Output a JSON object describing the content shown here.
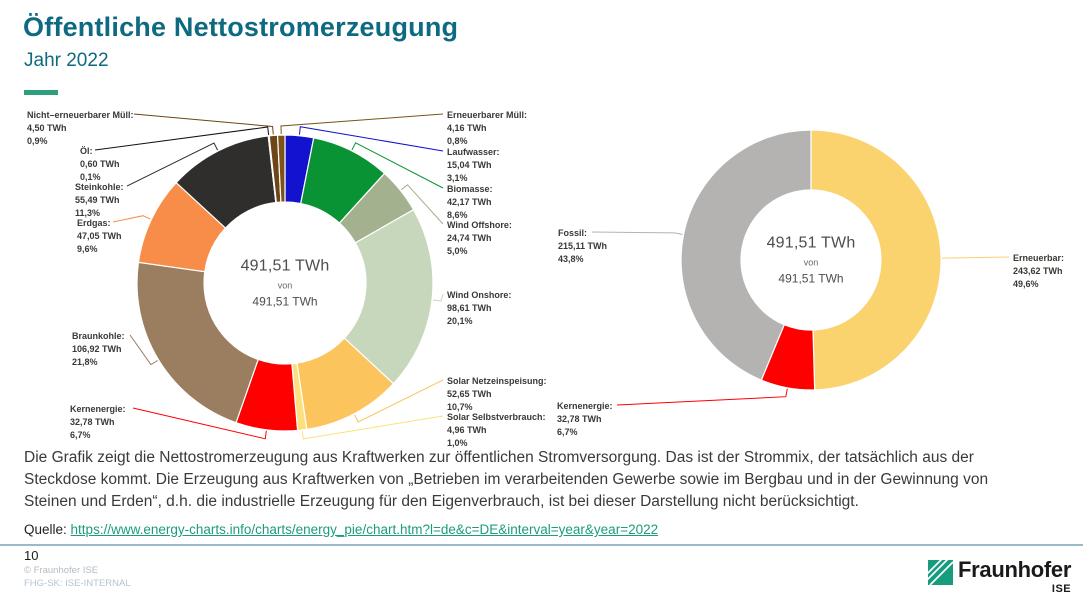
{
  "header": {
    "title": "Öffentliche Nettostromerzeugung",
    "subtitle": "Jahr 2022"
  },
  "chart_data": [
    {
      "type": "pie",
      "name": "Öffentliche Nettostromerzeugung nach Energieträgern 2022",
      "unit": "TWh",
      "center": {
        "main": "491,51 TWh",
        "von": "von",
        "total": "491,51 TWh"
      },
      "segments": [
        {
          "label": "Laufwasser:",
          "value": "15,04 TWh",
          "pct_label": "3,1%",
          "twh": 15.04,
          "pct": 3.1,
          "color": "#1212cf"
        },
        {
          "label": "Biomasse:",
          "value": "42,17 TWh",
          "pct_label": "8,6%",
          "twh": 42.17,
          "pct": 8.6,
          "color": "#0a9334"
        },
        {
          "label": "Wind Offshore:",
          "value": "24,74 TWh",
          "pct_label": "5,0%",
          "twh": 24.74,
          "pct": 5.0,
          "color": "#a3b18e"
        },
        {
          "label": "Wind Onshore:",
          "value": "98,61 TWh",
          "pct_label": "20,1%",
          "twh": 98.61,
          "pct": 20.1,
          "color": "#c7d7bb"
        },
        {
          "label": "Solar Netzeinspeisung:",
          "value": "52,65 TWh",
          "pct_label": "10,7%",
          "twh": 52.65,
          "pct": 10.7,
          "color": "#fbc45c"
        },
        {
          "label": "Solar Selbstverbrauch:",
          "value": "4,96 TWh",
          "pct_label": "1,0%",
          "twh": 4.96,
          "pct": 1.0,
          "color": "#fbe17d"
        },
        {
          "label": "Kernenergie:",
          "value": "32,78 TWh",
          "pct_label": "6,7%",
          "twh": 32.78,
          "pct": 6.7,
          "color": "#fe0000"
        },
        {
          "label": "Braunkohle:",
          "value": "106,92 TWh",
          "pct_label": "21,8%",
          "twh": 106.92,
          "pct": 21.8,
          "color": "#9b7d5f"
        },
        {
          "label": "Erdgas:",
          "value": "47,05 TWh",
          "pct_label": "9,6%",
          "twh": 47.05,
          "pct": 9.6,
          "color": "#f78d48"
        },
        {
          "label": "Steinkohle:",
          "value": "55,49 TWh",
          "pct_label": "11,3%",
          "twh": 55.49,
          "pct": 11.3,
          "color": "#302e2c"
        },
        {
          "label": "Öl:",
          "value": "0,60 TWh",
          "pct_label": "0,1%",
          "twh": 0.6,
          "pct": 0.1,
          "color": "#111111"
        },
        {
          "label": "Nicht–erneuerbarer Müll:",
          "value": "4,50 TWh",
          "pct_label": "0,9%",
          "twh": 4.5,
          "pct": 0.9,
          "color": "#6d4516"
        },
        {
          "label": "Erneuerbarer Müll:",
          "value": "4,16 TWh",
          "pct_label": "0,8%",
          "twh": 4.16,
          "pct": 0.8,
          "color": "#7d5318"
        }
      ]
    },
    {
      "type": "pie",
      "name": "Öffentliche Nettostromerzeugung gruppiert 2022",
      "unit": "TWh",
      "center": {
        "main": "491,51 TWh",
        "von": "von",
        "total": "491,51 TWh"
      },
      "segments": [
        {
          "label": "Erneuerbar:",
          "value": "243,62 TWh",
          "pct_label": "49,6%",
          "twh": 243.62,
          "pct": 49.6,
          "color": "#fad36e"
        },
        {
          "label": "Kernenergie:",
          "value": "32,78 TWh",
          "pct_label": "6,7%",
          "twh": 32.78,
          "pct": 6.7,
          "color": "#fe0000"
        },
        {
          "label": "Fossil:",
          "value": "215,11 TWh",
          "pct_label": "43,8%",
          "twh": 215.11,
          "pct": 43.8,
          "color": "#b5b2b2"
        }
      ]
    }
  ],
  "description": {
    "body": "Die Grafik zeigt die Nettostromerzeugung aus Kraftwerken zur öffentlichen Stromversorgung. Das ist der Strommix, der tatsächlich aus der Steckdose kommt. Die Erzeugung aus Kraftwerken von „Betrieben im verarbeitenden Gewerbe sowie im Bergbau und in der Gewinnung von Steinen und Erden“, d.h. die industrielle Erzeugung für den Eigenverbrauch, ist bei dieser Darstellung nicht berücksichtigt."
  },
  "source": {
    "label": "Quelle:",
    "url": "https://www.energy-charts.info/charts/energy_pie/chart.htm?l=de&c=DE&interval=year&year=2022"
  },
  "footer": {
    "page": "10",
    "copyright": "© Fraunhofer ISE",
    "classification": "FHG-SK: ISE-INTERNAL",
    "logo_text": "Fraunhofer",
    "logo_sub": "ISE"
  }
}
